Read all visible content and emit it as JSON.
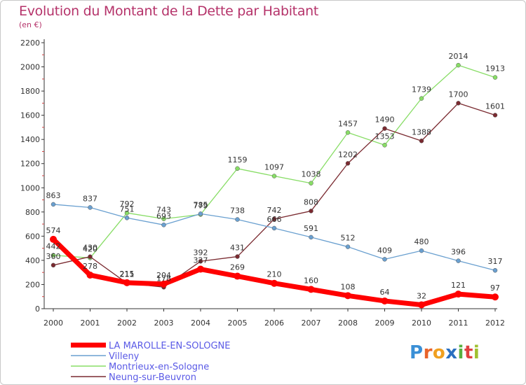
{
  "title": "Evolution du Montant de la Dette par Habitant",
  "subtitle": "(en €)",
  "logo_text": "Proxiti",
  "chart_data": {
    "type": "line",
    "title": "Evolution du Montant de la Dette par Habitant",
    "subtitle": "(en €)",
    "xlabel": "",
    "ylabel": "",
    "x": [
      "2000",
      "2001",
      "2002",
      "2003",
      "2004",
      "2005",
      "2006",
      "2007",
      "2008",
      "2009",
      "2010",
      "2011",
      "2012"
    ],
    "ylim": [
      0,
      2200
    ],
    "yticks": [
      0,
      200,
      400,
      600,
      800,
      1000,
      1200,
      1400,
      1600,
      1800,
      2000,
      2200
    ],
    "grid": false,
    "legend_position": "bottom-left",
    "series": [
      {
        "name": "LA MAROLLE-EN-SOLOGNE",
        "color": "#ff0000",
        "values": [
          574,
          278,
          215,
          204,
          327,
          269,
          210,
          160,
          108,
          64,
          32,
          121,
          97
        ]
      },
      {
        "name": "Villeny",
        "color": "#6aa0d0",
        "values": [
          863,
          837,
          751,
          693,
          785,
          738,
          666,
          591,
          512,
          409,
          480,
          396,
          317
        ]
      },
      {
        "name": "Montrieux-en-Sologne",
        "color": "#88dd66",
        "values": [
          442,
          420,
          792,
          743,
          779,
          1159,
          1097,
          1038,
          1457,
          1353,
          1739,
          2014,
          1913
        ]
      },
      {
        "name": "Neung-sur-Beuvron",
        "color": "#7a2a30",
        "values": [
          360,
          430,
          211,
          178,
          392,
          431,
          742,
          808,
          1202,
          1490,
          1388,
          1700,
          1601
        ]
      }
    ]
  }
}
